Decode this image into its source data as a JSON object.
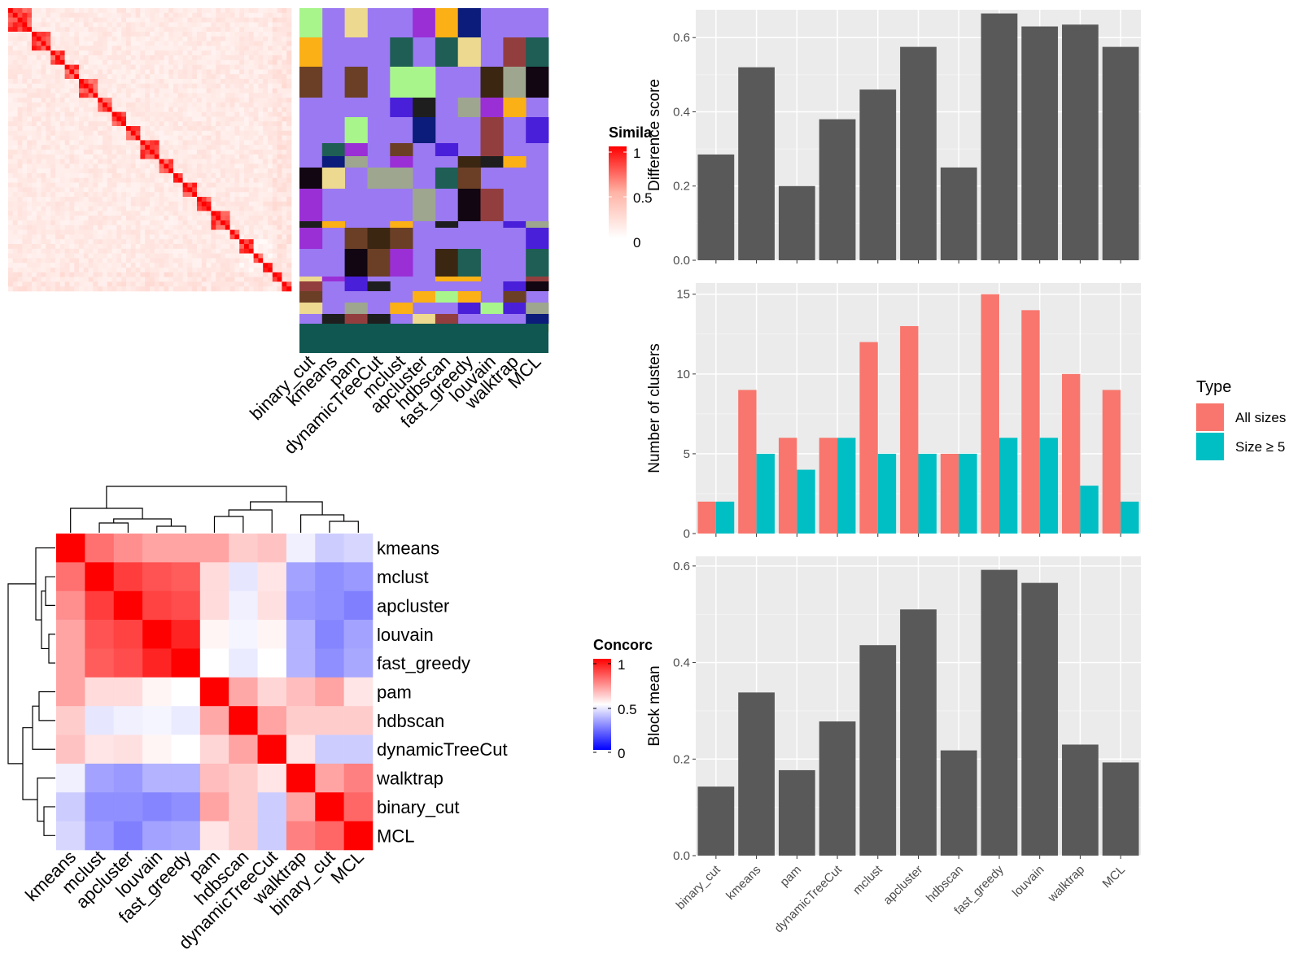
{
  "methods_order": [
    "binary_cut",
    "kmeans",
    "pam",
    "dynamicTreeCut",
    "mclust",
    "apcluster",
    "hdbscan",
    "fast_greedy",
    "louvain",
    "walktrap",
    "MCL"
  ],
  "heatmap_top": {
    "legend_title": "Simila",
    "legend_ticks": [
      "1",
      "0.5",
      "0"
    ],
    "column_labels": [
      "binary_cut",
      "kmeans",
      "pam",
      "dynamicTreeCut",
      "mclust",
      "apcluster",
      "hdbscan",
      "fast_greedy",
      "louvain",
      "walktrap",
      "MCL"
    ]
  },
  "heatmap_bottom": {
    "legend_title": "Concorc",
    "legend_ticks": [
      "1",
      "0.5",
      "0"
    ],
    "row_labels": [
      "kmeans",
      "mclust",
      "apcluster",
      "louvain",
      "fast_greedy",
      "pam",
      "hdbscan",
      "dynamicTreeCut",
      "walktrap",
      "binary_cut",
      "MCL"
    ],
    "col_labels": [
      "kmeans",
      "mclust",
      "apcluster",
      "louvain",
      "fast_greedy",
      "pam",
      "hdbscan",
      "dynamicTreeCut",
      "walktrap",
      "binary_cut",
      "MCL"
    ]
  },
  "chart_data": [
    {
      "type": "heatmap",
      "title": "",
      "legend_title": "Simila",
      "color_scale": {
        "0": "#ffffff",
        "0.5": "#ffb3a5",
        "1": "#ff0000"
      },
      "n_terms": 60,
      "diagonal_value": 1,
      "block_sizes": [
        5,
        4,
        3,
        3,
        4,
        3,
        3,
        3,
        4,
        3,
        2,
        3,
        3,
        4,
        2,
        3,
        2,
        2,
        2,
        2
      ]
    },
    {
      "type": "heatmap",
      "title": "",
      "legend_title": "Concorc",
      "color_scale": {
        "0": "#0000ff",
        "0.5": "#ffffff",
        "1": "#ff0000"
      },
      "rows": [
        "kmeans",
        "mclust",
        "apcluster",
        "louvain",
        "fast_greedy",
        "pam",
        "hdbscan",
        "dynamicTreeCut",
        "walktrap",
        "binary_cut",
        "MCL"
      ],
      "cols": [
        "kmeans",
        "mclust",
        "apcluster",
        "louvain",
        "fast_greedy",
        "pam",
        "hdbscan",
        "dynamicTreeCut",
        "walktrap",
        "binary_cut",
        "MCL"
      ],
      "values": [
        [
          1.0,
          0.78,
          0.72,
          0.68,
          0.68,
          0.68,
          0.6,
          0.62,
          0.47,
          0.4,
          0.42
        ],
        [
          0.78,
          1.0,
          0.88,
          0.84,
          0.82,
          0.57,
          0.45,
          0.55,
          0.32,
          0.28,
          0.3
        ],
        [
          0.72,
          0.88,
          1.0,
          0.87,
          0.85,
          0.57,
          0.47,
          0.56,
          0.3,
          0.28,
          0.25
        ],
        [
          0.68,
          0.84,
          0.87,
          1.0,
          0.93,
          0.52,
          0.48,
          0.52,
          0.35,
          0.26,
          0.32
        ],
        [
          0.68,
          0.82,
          0.85,
          0.93,
          1.0,
          0.5,
          0.46,
          0.5,
          0.35,
          0.28,
          0.33
        ],
        [
          0.68,
          0.57,
          0.57,
          0.52,
          0.5,
          1.0,
          0.67,
          0.58,
          0.63,
          0.68,
          0.55
        ],
        [
          0.6,
          0.45,
          0.47,
          0.48,
          0.46,
          0.67,
          1.0,
          0.68,
          0.6,
          0.6,
          0.6
        ],
        [
          0.62,
          0.55,
          0.56,
          0.52,
          0.5,
          0.58,
          0.68,
          1.0,
          0.55,
          0.4,
          0.4
        ],
        [
          0.47,
          0.32,
          0.3,
          0.35,
          0.35,
          0.63,
          0.6,
          0.55,
          1.0,
          0.68,
          0.75
        ],
        [
          0.4,
          0.28,
          0.28,
          0.26,
          0.28,
          0.68,
          0.6,
          0.4,
          0.68,
          1.0,
          0.8
        ],
        [
          0.42,
          0.3,
          0.25,
          0.32,
          0.33,
          0.55,
          0.6,
          0.4,
          0.75,
          0.8,
          1.0
        ]
      ]
    },
    {
      "type": "bar",
      "title": "",
      "xlabel": "",
      "ylabel": "Difference score",
      "categories": [
        "binary_cut",
        "kmeans",
        "pam",
        "dynamicTreeCut",
        "mclust",
        "apcluster",
        "hdbscan",
        "fast_greedy",
        "louvain",
        "walktrap",
        "MCL"
      ],
      "values": [
        0.285,
        0.52,
        0.2,
        0.38,
        0.46,
        0.575,
        0.25,
        0.665,
        0.63,
        0.635,
        0.575
      ],
      "ylim": [
        0,
        0.675
      ],
      "yticks": [
        0.0,
        0.2,
        0.4,
        0.6
      ],
      "grid": true
    },
    {
      "type": "bar",
      "title": "",
      "xlabel": "",
      "ylabel": "Number of clusters",
      "categories": [
        "binary_cut",
        "kmeans",
        "pam",
        "dynamicTreeCut",
        "mclust",
        "apcluster",
        "hdbscan",
        "fast_greedy",
        "louvain",
        "walktrap",
        "MCL"
      ],
      "series": [
        {
          "name": "All sizes",
          "color": "#f8766d",
          "values": [
            2,
            9,
            6,
            6,
            12,
            13,
            5,
            15,
            14,
            10,
            9
          ]
        },
        {
          "name": "Size ≥ 5",
          "color": "#00bfc4",
          "values": [
            2,
            5,
            4,
            6,
            5,
            5,
            5,
            6,
            6,
            3,
            2
          ]
        }
      ],
      "legend_title": "Type",
      "legend_position": "right",
      "ylim": [
        0,
        15.7
      ],
      "yticks": [
        0,
        5,
        10,
        15
      ],
      "grid": true
    },
    {
      "type": "bar",
      "title": "",
      "xlabel": "",
      "ylabel": "Block mean",
      "categories": [
        "binary_cut",
        "kmeans",
        "pam",
        "dynamicTreeCut",
        "mclust",
        "apcluster",
        "hdbscan",
        "fast_greedy",
        "louvain",
        "walktrap",
        "MCL"
      ],
      "values": [
        0.143,
        0.338,
        0.177,
        0.278,
        0.436,
        0.51,
        0.218,
        0.592,
        0.565,
        0.23,
        0.193
      ],
      "ylim": [
        0,
        0.62
      ],
      "yticks": [
        0.0,
        0.2,
        0.4,
        0.6
      ],
      "grid": true
    }
  ]
}
